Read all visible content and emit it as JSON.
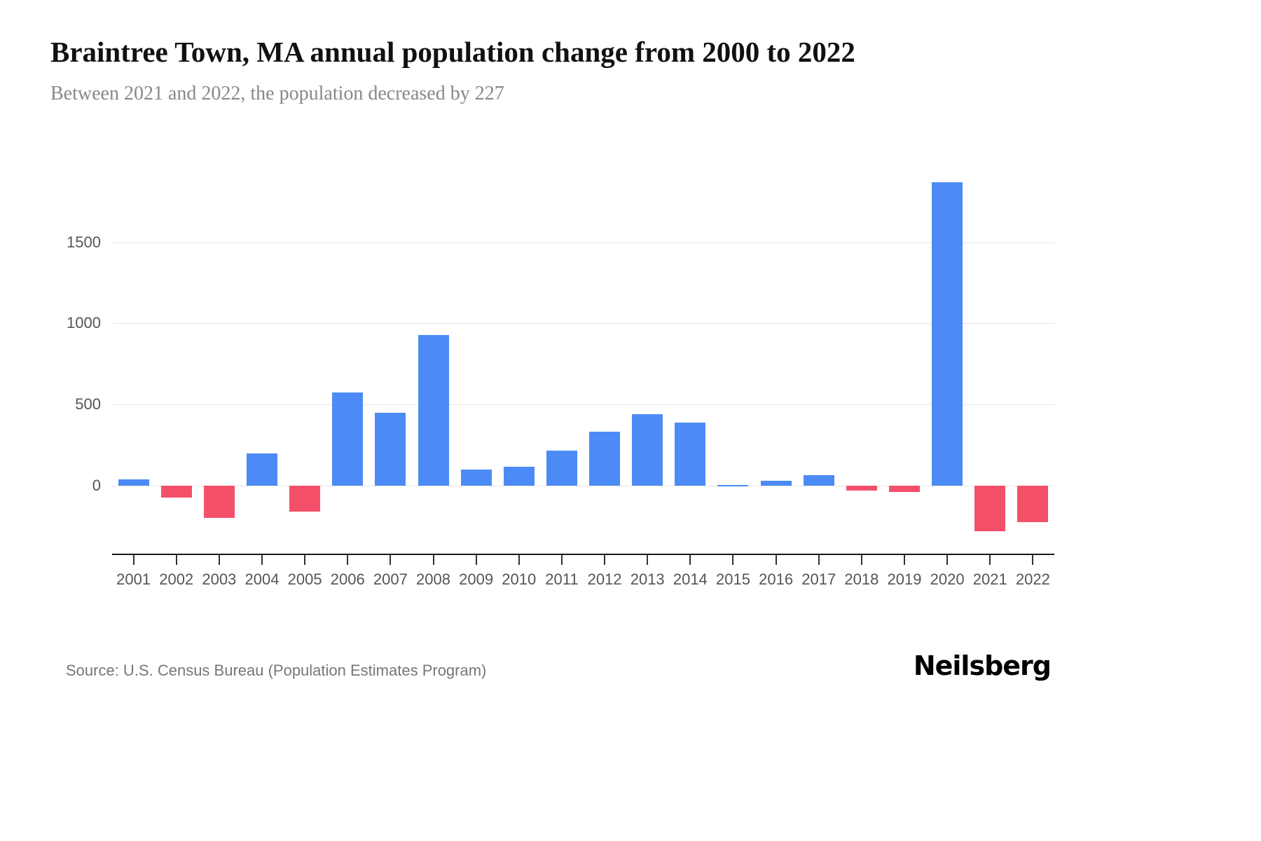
{
  "chart_data": {
    "type": "bar",
    "title": "Braintree Town, MA annual population change from 2000 to 2022",
    "subtitle": "Between 2021 and 2022, the population decreased by 227",
    "categories": [
      "2001",
      "2002",
      "2003",
      "2004",
      "2005",
      "2006",
      "2007",
      "2008",
      "2009",
      "2010",
      "2011",
      "2012",
      "2013",
      "2014",
      "2015",
      "2016",
      "2017",
      "2018",
      "2019",
      "2020",
      "2021",
      "2022"
    ],
    "values": [
      40,
      -75,
      -200,
      200,
      -160,
      575,
      450,
      930,
      100,
      115,
      215,
      330,
      440,
      390,
      5,
      30,
      65,
      -30,
      -40,
      1870,
      -280,
      -227
    ],
    "xlabel": "",
    "ylabel": "",
    "ylim": [
      -420,
      2000
    ],
    "yticks": [
      0,
      500,
      1000,
      1500
    ],
    "grid": true,
    "legend": false,
    "colors": {
      "positive": "#4c8bf5",
      "negative": "#f4506a"
    }
  },
  "footer": {
    "source": "Source: U.S. Census Bureau (Population Estimates Program)",
    "logo": "Neilsberg"
  }
}
